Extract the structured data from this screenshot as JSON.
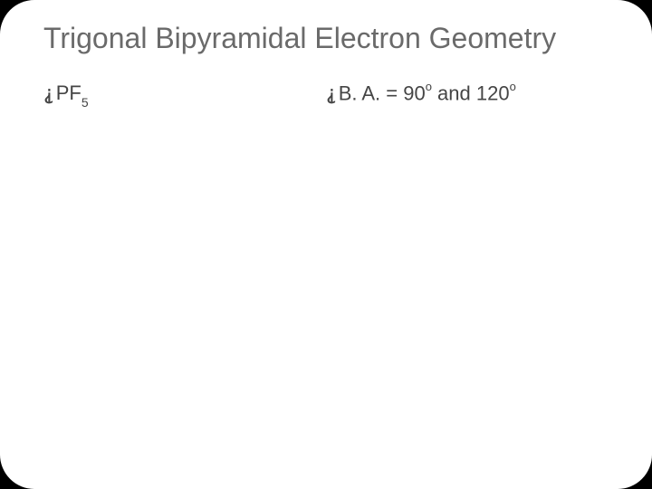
{
  "title": "Trigonal Bipyramidal Electron Geometry",
  "bullet_marker": "⸘",
  "left": {
    "formula_base": "PF",
    "formula_sub": "5"
  },
  "right": {
    "prefix": "B. A. = 90",
    "sup1": "o",
    "mid": " and 120",
    "sup2": "o"
  },
  "colors": {
    "background": "#000000",
    "slide_bg": "#ffffff",
    "title_color": "#6a6a6a",
    "body_color": "#454545"
  },
  "typography": {
    "title_fontsize": 32,
    "body_fontsize": 22,
    "sub_fontsize": 14,
    "sup_fontsize": 13
  },
  "layout": {
    "slide_width": 720,
    "slide_height": 540,
    "border_radius": 38
  }
}
